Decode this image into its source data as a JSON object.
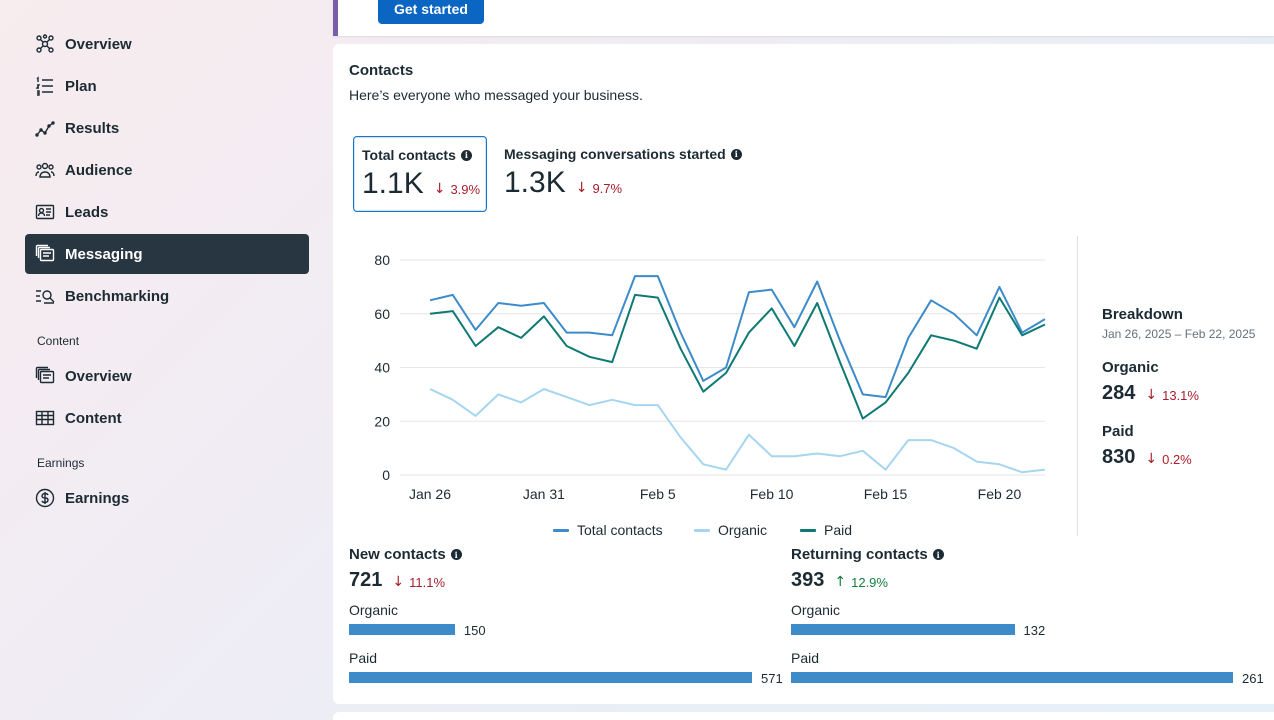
{
  "sidebar": {
    "items": [
      {
        "label": "Overview",
        "icon": "network-icon"
      },
      {
        "label": "Plan",
        "icon": "list-icon"
      },
      {
        "label": "Results",
        "icon": "trend-icon"
      },
      {
        "label": "Audience",
        "icon": "people-icon"
      },
      {
        "label": "Leads",
        "icon": "id-card-icon"
      },
      {
        "label": "Messaging",
        "icon": "messages-icon"
      },
      {
        "label": "Benchmarking",
        "icon": "search-list-icon"
      }
    ],
    "content_section": "Content",
    "content_items": [
      {
        "label": "Overview",
        "icon": "stacked-cards-icon"
      },
      {
        "label": "Content",
        "icon": "table-icon"
      }
    ],
    "earnings_section": "Earnings",
    "earnings_items": [
      {
        "label": "Earnings",
        "icon": "dollar-icon"
      }
    ]
  },
  "top": {
    "get_started": "Get started"
  },
  "contacts": {
    "title": "Contacts",
    "subtitle": "Here’s everyone who messaged your business.",
    "metrics": [
      {
        "label": "Total contacts",
        "value": "1.1K",
        "delta": "3.9%"
      },
      {
        "label": "Messaging conversations started",
        "value": "1.3K",
        "delta": "9.7%"
      }
    ]
  },
  "chart_data": {
    "type": "line",
    "x": [
      "Jan 26",
      "Jan 27",
      "Jan 28",
      "Jan 29",
      "Jan 30",
      "Jan 31",
      "Feb 1",
      "Feb 2",
      "Feb 3",
      "Feb 4",
      "Feb 5",
      "Feb 6",
      "Feb 7",
      "Feb 8",
      "Feb 9",
      "Feb 10",
      "Feb 11",
      "Feb 12",
      "Feb 13",
      "Feb 14",
      "Feb 15",
      "Feb 16",
      "Feb 17",
      "Feb 18",
      "Feb 19",
      "Feb 20",
      "Feb 21",
      "Feb 22"
    ],
    "x_tick_labels": [
      "Jan 26",
      "Jan 31",
      "Feb 5",
      "Feb 10",
      "Feb 15",
      "Feb 20"
    ],
    "ylim": [
      0,
      80
    ],
    "y_ticks": [
      0,
      20,
      40,
      60,
      80
    ],
    "grid": true,
    "legend": "bottom",
    "series": [
      {
        "name": "Total contacts",
        "color": "#3d8bc9",
        "values": [
          65,
          67,
          54,
          64,
          63,
          64,
          53,
          53,
          52,
          74,
          74,
          53,
          35,
          40,
          68,
          69,
          55,
          72,
          50,
          30,
          29,
          51,
          65,
          60,
          52,
          70,
          53,
          58
        ]
      },
      {
        "name": "Organic",
        "color": "#a6d6ef",
        "values": [
          32,
          28,
          22,
          30,
          27,
          32,
          29,
          26,
          28,
          26,
          26,
          14,
          4,
          2,
          15,
          7,
          7,
          8,
          7,
          9,
          2,
          13,
          13,
          10,
          5,
          4,
          1,
          2
        ]
      },
      {
        "name": "Paid",
        "color": "#0e7a73",
        "values": [
          60,
          61,
          48,
          55,
          51,
          59,
          48,
          44,
          42,
          67,
          66,
          47,
          31,
          38,
          53,
          62,
          48,
          64,
          42,
          21,
          27,
          38,
          52,
          50,
          47,
          66,
          52,
          56
        ]
      }
    ]
  },
  "breakdown": {
    "title": "Breakdown",
    "date_range": "Jan 26, 2025 – Feb 22, 2025",
    "items": [
      {
        "label": "Organic",
        "value": "284",
        "delta": "13.1%"
      },
      {
        "label": "Paid",
        "value": "830",
        "delta": "0.2%"
      }
    ]
  },
  "new_contacts": {
    "title": "New contacts",
    "value": "721",
    "delta": "11.1%",
    "organic_label": "Organic",
    "organic_value": "150",
    "organic_count": 150,
    "paid_label": "Paid",
    "paid_value": "571",
    "paid_count": 571
  },
  "returning_contacts": {
    "title": "Returning contacts",
    "value": "393",
    "delta": "12.9%",
    "organic_label": "Organic",
    "organic_value": "132",
    "organic_count": 132,
    "paid_label": "Paid",
    "paid_value": "261",
    "paid_count": 261
  }
}
